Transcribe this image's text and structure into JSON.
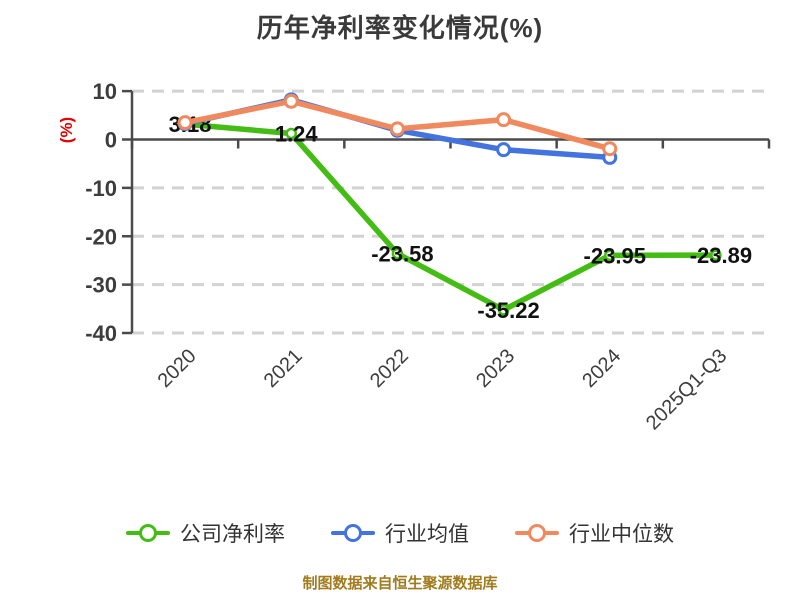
{
  "title": "历年净利率变化情况(%)",
  "y_axis_label": "(%)",
  "caption": "制图数据来自恒生聚源数据库",
  "colors": {
    "company": "#43bd13",
    "industry_avg": "#4273de",
    "industry_median": "#f08a5e",
    "title_text": "#3a3a3a",
    "axis_line": "#4a4a4a",
    "tick_text": "#3d3d3d",
    "grid_line": "#d2d2d2",
    "value_label": "#111111",
    "legend_text": "#333333",
    "caption_text": "#a17c1e",
    "y_label_red": "#e60000",
    "marker_fill": "#ffffff",
    "background": "#ffffff"
  },
  "chart_data": {
    "type": "line",
    "title": "历年净利率变化情况(%)",
    "categories": [
      "2020",
      "2021",
      "2022",
      "2023",
      "2024",
      "2025Q1-Q3"
    ],
    "series": [
      {
        "name": "公司净利率",
        "color": "#43bd13",
        "values": [
          3.18,
          1.24,
          -23.58,
          -35.22,
          -23.95,
          -23.89
        ],
        "data_labels": [
          "3.18",
          "1.24",
          "-23.58",
          "-35.22",
          "-23.95",
          "-23.89"
        ]
      },
      {
        "name": "行业均值",
        "color": "#4273de",
        "values": [
          3.3,
          8.2,
          1.9,
          -2.1,
          -3.7,
          null
        ],
        "data_labels": []
      },
      {
        "name": "行业中位数",
        "color": "#f08a5e",
        "values": [
          3.5,
          7.9,
          2.2,
          4.1,
          -1.9,
          null
        ],
        "data_labels": []
      }
    ],
    "xlabel": "",
    "ylabel": "(%)",
    "ylim": [
      -40,
      10
    ],
    "yticks": [
      10,
      0,
      -10,
      -20,
      -30,
      -40
    ],
    "grid": "horizontal-dashed",
    "x_tick_style": "boundary-ticks-on-zero-line",
    "x_label_rotation": -45,
    "legend_position": "bottom"
  }
}
